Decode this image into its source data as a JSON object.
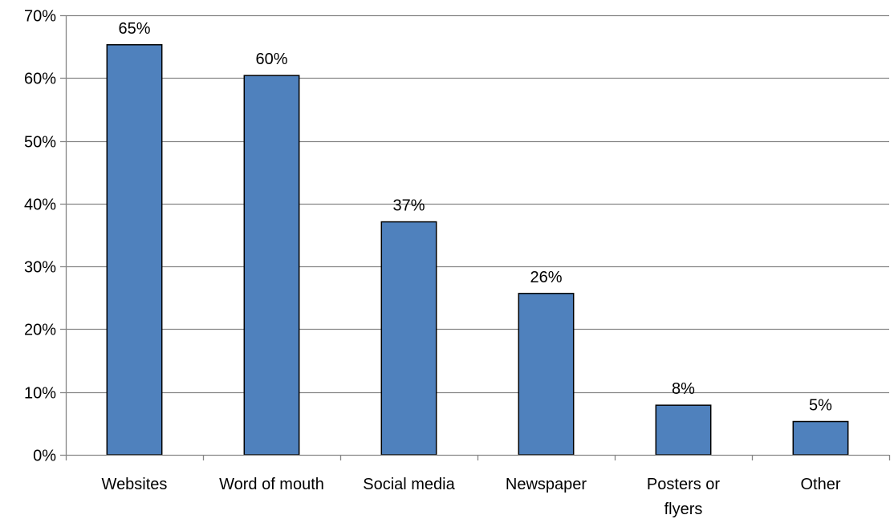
{
  "chart_data": {
    "type": "bar",
    "categories": [
      [
        "Websites"
      ],
      [
        "Word of mouth"
      ],
      [
        "Social media"
      ],
      [
        "Newspaper"
      ],
      [
        "Posters or",
        "flyers"
      ],
      [
        "Other"
      ]
    ],
    "values": [
      65.3,
      60.4,
      37.1,
      25.7,
      7.9,
      5.3
    ],
    "data_labels": [
      "65%",
      "60%",
      "37%",
      "26%",
      "8%",
      "5%"
    ],
    "y_ticks": [
      0,
      10,
      20,
      30,
      40,
      50,
      60,
      70
    ],
    "y_tick_labels": [
      "0%",
      "10%",
      "20%",
      "30%",
      "40%",
      "50%",
      "60%",
      "70%"
    ],
    "ylim": [
      0,
      70
    ],
    "grid": true,
    "legend": "none",
    "colors": {
      "bar_fill": "#4f81bd",
      "bar_stroke": "#000000",
      "grid": "#868686",
      "axis": "#868686"
    }
  }
}
